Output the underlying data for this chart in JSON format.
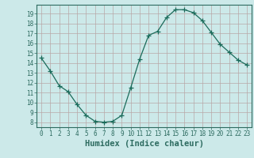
{
  "x": [
    0,
    1,
    2,
    3,
    4,
    5,
    6,
    7,
    8,
    9,
    10,
    11,
    12,
    13,
    14,
    15,
    16,
    17,
    18,
    19,
    20,
    21,
    22,
    23
  ],
  "y": [
    14.5,
    13.2,
    11.7,
    11.1,
    9.8,
    8.7,
    8.1,
    8.0,
    8.1,
    8.7,
    11.5,
    14.4,
    16.8,
    17.2,
    18.6,
    19.4,
    19.4,
    19.1,
    18.3,
    17.1,
    15.9,
    15.1,
    14.3,
    13.8
  ],
  "line_color": "#1a6b5a",
  "marker": "+",
  "marker_size": 4,
  "xlabel": "Humidex (Indice chaleur)",
  "xlim": [
    -0.5,
    23.5
  ],
  "ylim": [
    7.5,
    19.9
  ],
  "yticks": [
    8,
    9,
    10,
    11,
    12,
    13,
    14,
    15,
    16,
    17,
    18,
    19
  ],
  "xticks": [
    0,
    1,
    2,
    3,
    4,
    5,
    6,
    7,
    8,
    9,
    10,
    11,
    12,
    13,
    14,
    15,
    16,
    17,
    18,
    19,
    20,
    21,
    22,
    23
  ],
  "bg_color": "#cce9e9",
  "grid_color": "#b8a8a8",
  "tick_color": "#2d6b60",
  "label_fontsize": 7.5,
  "tick_fontsize": 5.5
}
